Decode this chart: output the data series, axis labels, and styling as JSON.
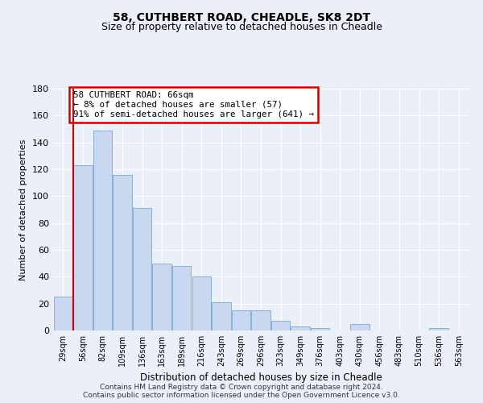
{
  "title": "58, CUTHBERT ROAD, CHEADLE, SK8 2DT",
  "subtitle": "Size of property relative to detached houses in Cheadle",
  "xlabel": "Distribution of detached houses by size in Cheadle",
  "ylabel": "Number of detached properties",
  "bar_color": "#c8d8f0",
  "bar_edge_color": "#8aaed4",
  "categories": [
    "29sqm",
    "56sqm",
    "82sqm",
    "109sqm",
    "136sqm",
    "163sqm",
    "189sqm",
    "216sqm",
    "243sqm",
    "269sqm",
    "296sqm",
    "323sqm",
    "349sqm",
    "376sqm",
    "403sqm",
    "430sqm",
    "456sqm",
    "483sqm",
    "510sqm",
    "536sqm",
    "563sqm"
  ],
  "values": [
    25,
    123,
    149,
    116,
    91,
    50,
    48,
    40,
    21,
    15,
    15,
    7,
    3,
    2,
    0,
    5,
    0,
    0,
    0,
    2,
    0
  ],
  "property_line_x": 1.5,
  "annotation_text": "58 CUTHBERT ROAD: 66sqm\n← 8% of detached houses are smaller (57)\n91% of semi-detached houses are larger (641) →",
  "annotation_box_color": "#ffffff",
  "annotation_box_edge": "#cc0000",
  "line_color": "#cc0000",
  "ylim": [
    0,
    180
  ],
  "yticks": [
    0,
    20,
    40,
    60,
    80,
    100,
    120,
    140,
    160,
    180
  ],
  "footer1": "Contains HM Land Registry data © Crown copyright and database right 2024.",
  "footer2": "Contains public sector information licensed under the Open Government Licence v3.0.",
  "bg_color": "#eaeff8",
  "grid_color": "#ffffff",
  "title_fontsize": 10,
  "subtitle_fontsize": 9
}
